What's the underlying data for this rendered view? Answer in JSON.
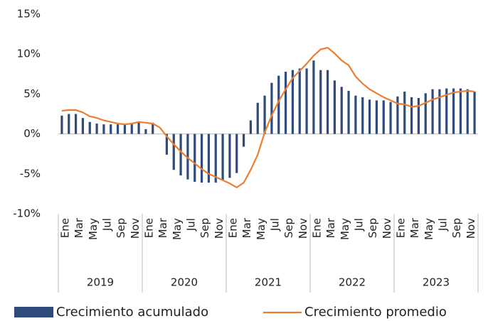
{
  "chart_data": {
    "type": "bar_line",
    "categories": [
      "Ene",
      null,
      "Mar",
      null,
      "May",
      null,
      "Jul",
      null,
      "Sep",
      null,
      "Nov",
      null,
      "Ene",
      null,
      "Mar",
      null,
      "May",
      null,
      "Jul",
      null,
      "Sep",
      null,
      "Nov",
      null,
      "Ene",
      null,
      "Mar",
      null,
      "May",
      null,
      "Jul",
      null,
      "Sep",
      null,
      "Nov",
      null,
      "Ene",
      null,
      "Mar",
      null,
      "May",
      null,
      "Jul",
      null,
      "Sep",
      null,
      "Nov",
      null,
      "Ene",
      null,
      "Mar",
      null,
      "May",
      null,
      "Jul",
      null,
      "Sep",
      null,
      "Nov",
      null
    ],
    "years": [
      "2019",
      "2020",
      "2021",
      "2022",
      "2023"
    ],
    "series": [
      {
        "name": "Crecimiento acumulado",
        "type": "bar",
        "color": "#2f4b7c",
        "values": [
          2.3,
          2.5,
          2.5,
          2.0,
          1.5,
          1.3,
          1.2,
          1.2,
          1.2,
          1.3,
          1.3,
          1.4,
          0.6,
          1.4,
          0.0,
          -2.6,
          -4.5,
          -5.2,
          -5.7,
          -6.0,
          -6.1,
          -6.1,
          -6.1,
          -5.8,
          -5.5,
          -4.9,
          -1.6,
          1.7,
          3.9,
          4.8,
          6.4,
          7.3,
          7.8,
          8.0,
          8.2,
          8.2,
          9.2,
          8.0,
          8.0,
          6.7,
          5.9,
          5.4,
          4.8,
          4.6,
          4.3,
          4.2,
          4.2,
          4.0,
          4.7,
          5.3,
          4.6,
          4.5,
          5.1,
          5.6,
          5.6,
          5.7,
          5.7,
          5.7,
          5.6,
          5.3
        ]
      },
      {
        "name": "Crecimiento promedio",
        "type": "line",
        "color": "#ed7d31",
        "values": [
          2.9,
          3.0,
          3.0,
          2.7,
          2.2,
          2.0,
          1.7,
          1.5,
          1.3,
          1.2,
          1.3,
          1.5,
          1.4,
          1.3,
          0.8,
          -0.3,
          -1.3,
          -2.2,
          -3.0,
          -3.7,
          -4.4,
          -5.0,
          -5.4,
          -5.8,
          -6.2,
          -6.7,
          -6.1,
          -4.5,
          -2.6,
          0.2,
          2.3,
          4.1,
          5.6,
          7.0,
          7.9,
          8.8,
          9.8,
          10.6,
          10.8,
          10.1,
          9.2,
          8.6,
          7.2,
          6.3,
          5.6,
          5.1,
          4.6,
          4.2,
          3.8,
          3.7,
          3.4,
          3.5,
          3.9,
          4.3,
          4.6,
          4.9,
          5.2,
          5.3,
          5.4,
          5.3
        ]
      }
    ],
    "ylim": [
      -10,
      15
    ],
    "yticks": [
      {
        "value": -10,
        "label": "-10%"
      },
      {
        "value": -5,
        "label": "-5%"
      },
      {
        "value": 0,
        "label": "0%"
      },
      {
        "value": 5,
        "label": "5%"
      },
      {
        "value": 10,
        "label": "10%"
      },
      {
        "value": 15,
        "label": "15%"
      }
    ],
    "grid": false,
    "legend": "bottom"
  }
}
